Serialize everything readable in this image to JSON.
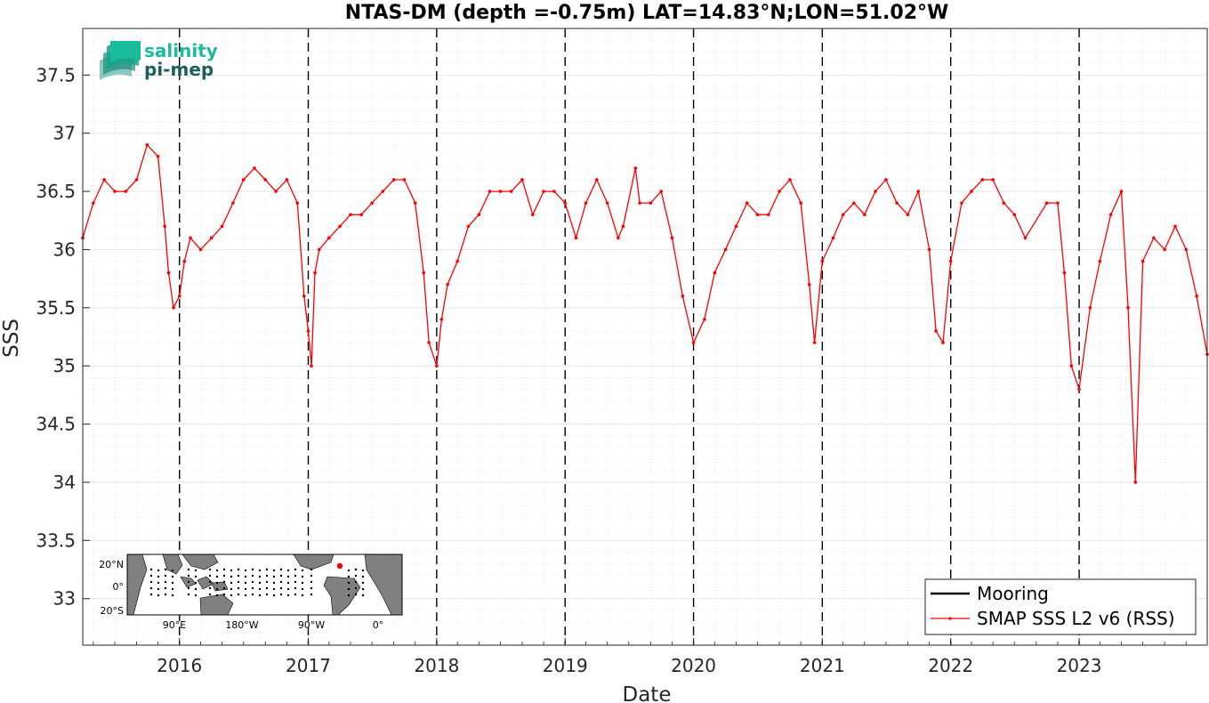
{
  "logo": {
    "line1": "salinity",
    "line2": "pi-mep"
  },
  "chart_data": {
    "type": "line",
    "title": "NTAS-DM (depth =-0.75m) LAT=14.83°N;LON=51.02°W",
    "xlabel": "Date",
    "ylabel": "SSS",
    "xlim": [
      "2015-04-01",
      "2023-12-31"
    ],
    "ylim": [
      32.6,
      37.9
    ],
    "x_ticks": [
      {
        "date": "2016-01-01",
        "label": "2016"
      },
      {
        "date": "2017-01-01",
        "label": "2017"
      },
      {
        "date": "2018-01-01",
        "label": "2018"
      },
      {
        "date": "2019-01-01",
        "label": "2019"
      },
      {
        "date": "2020-01-01",
        "label": "2020"
      },
      {
        "date": "2021-01-01",
        "label": "2021"
      },
      {
        "date": "2022-01-01",
        "label": "2022"
      },
      {
        "date": "2023-01-01",
        "label": "2023"
      }
    ],
    "y_ticks": [
      33,
      33.5,
      34,
      34.5,
      35,
      35.5,
      36,
      36.5,
      37,
      37.5
    ],
    "y_tick_labels": [
      "33",
      "33.5",
      "34",
      "34.5",
      "35",
      "35.5",
      "36",
      "36.5",
      "37",
      "37.5"
    ],
    "grid": true,
    "legend_position": "bottom-right",
    "vertical_dashed_lines": [
      "2016-01-01",
      "2017-01-01",
      "2018-01-01",
      "2019-01-01",
      "2020-01-01",
      "2021-01-01",
      "2022-01-01",
      "2023-01-01"
    ],
    "series": [
      {
        "name": "Mooring",
        "color": "#000000",
        "values": []
      },
      {
        "name": "SMAP SSS L2 v6 (RSS)",
        "color": "#ff0000",
        "x": [
          "2015-04-01",
          "2015-05-01",
          "2015-06-01",
          "2015-07-01",
          "2015-08-01",
          "2015-09-01",
          "2015-10-01",
          "2015-11-01",
          "2015-11-20",
          "2015-12-01",
          "2015-12-15",
          "2016-01-01",
          "2016-01-15",
          "2016-02-01",
          "2016-03-01",
          "2016-04-01",
          "2016-05-01",
          "2016-06-01",
          "2016-07-01",
          "2016-08-01",
          "2016-09-01",
          "2016-10-01",
          "2016-11-01",
          "2016-12-01",
          "2016-12-20",
          "2017-01-01",
          "2017-01-10",
          "2017-01-20",
          "2017-02-01",
          "2017-03-01",
          "2017-04-01",
          "2017-05-01",
          "2017-06-01",
          "2017-07-01",
          "2017-08-01",
          "2017-09-01",
          "2017-10-01",
          "2017-11-01",
          "2017-11-25",
          "2017-12-10",
          "2018-01-01",
          "2018-01-15",
          "2018-02-01",
          "2018-03-01",
          "2018-04-01",
          "2018-05-01",
          "2018-06-01",
          "2018-07-01",
          "2018-08-01",
          "2018-09-01",
          "2018-10-01",
          "2018-11-01",
          "2018-12-01",
          "2019-01-01",
          "2019-02-01",
          "2019-03-01",
          "2019-04-01",
          "2019-05-01",
          "2019-06-01",
          "2019-06-15",
          "2019-07-20",
          "2019-08-01",
          "2019-09-01",
          "2019-10-01",
          "2019-11-01",
          "2019-12-01",
          "2020-01-01",
          "2020-02-01",
          "2020-03-01",
          "2020-04-01",
          "2020-05-01",
          "2020-06-01",
          "2020-07-01",
          "2020-08-01",
          "2020-09-01",
          "2020-10-01",
          "2020-11-01",
          "2020-11-25",
          "2020-12-10",
          "2021-01-01",
          "2021-02-01",
          "2021-03-01",
          "2021-04-01",
          "2021-05-01",
          "2021-06-01",
          "2021-07-01",
          "2021-08-01",
          "2021-09-01",
          "2021-10-01",
          "2021-11-01",
          "2021-11-20",
          "2021-12-10",
          "2022-01-01",
          "2022-02-01",
          "2022-03-01",
          "2022-04-01",
          "2022-05-01",
          "2022-06-01",
          "2022-07-01",
          "2022-08-01",
          "2022-10-01",
          "2022-11-01",
          "2022-11-20",
          "2022-12-10",
          "2023-01-01",
          "2023-02-01",
          "2023-03-01",
          "2023-04-01",
          "2023-05-01",
          "2023-05-20",
          "2023-06-10",
          "2023-07-01",
          "2023-08-01",
          "2023-09-01",
          "2023-10-01",
          "2023-11-01",
          "2023-12-01",
          "2023-12-31"
        ],
        "values": [
          36.1,
          36.4,
          36.6,
          36.5,
          36.5,
          36.6,
          36.9,
          36.8,
          36.2,
          35.8,
          35.5,
          35.6,
          35.9,
          36.1,
          36.0,
          36.1,
          36.2,
          36.4,
          36.6,
          36.7,
          36.6,
          36.5,
          36.6,
          36.4,
          35.6,
          35.3,
          35.0,
          35.8,
          36.0,
          36.1,
          36.2,
          36.3,
          36.3,
          36.4,
          36.5,
          36.6,
          36.6,
          36.4,
          35.8,
          35.2,
          35.0,
          35.4,
          35.7,
          35.9,
          36.2,
          36.3,
          36.5,
          36.5,
          36.5,
          36.6,
          36.3,
          36.5,
          36.5,
          36.4,
          36.1,
          36.4,
          36.6,
          36.4,
          36.1,
          36.2,
          36.7,
          36.4,
          36.4,
          36.5,
          36.1,
          35.6,
          35.2,
          35.4,
          35.8,
          36.0,
          36.2,
          36.4,
          36.3,
          36.3,
          36.5,
          36.6,
          36.4,
          35.7,
          35.2,
          35.9,
          36.1,
          36.3,
          36.4,
          36.3,
          36.5,
          36.6,
          36.4,
          36.3,
          36.5,
          36.0,
          35.3,
          35.2,
          35.9,
          36.4,
          36.5,
          36.6,
          36.6,
          36.4,
          36.3,
          36.1,
          36.4,
          36.4,
          35.8,
          35.0,
          34.8,
          35.5,
          35.9,
          36.3,
          36.5,
          35.5,
          34.0,
          35.9,
          36.1,
          36.0,
          36.2,
          36.0,
          35.6,
          35.1
        ]
      }
    ]
  },
  "inset_map": {
    "lat_labels": [
      "20°N",
      "0°",
      "20°S"
    ],
    "lon_labels": [
      "90°E",
      "180°W",
      "90°W",
      "0°"
    ]
  }
}
